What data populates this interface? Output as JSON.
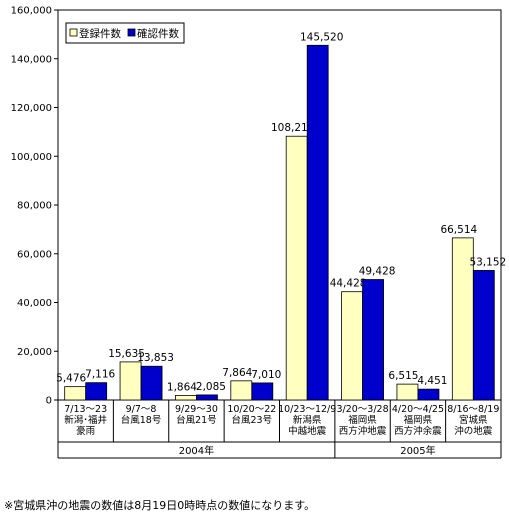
{
  "chart_data": {
    "type": "bar",
    "categories": [
      [
        "7/13～23",
        "新潟･福井",
        "豪雨"
      ],
      [
        "9/7～8",
        "台風18号"
      ],
      [
        "9/29～30",
        "台風21号"
      ],
      [
        "10/20～22",
        "台風23号"
      ],
      [
        "10/23～12/9",
        "新潟県",
        "中越地震"
      ],
      [
        "3/20～3/28",
        "福岡県",
        "西方沖地震"
      ],
      [
        "4/20～4/25",
        "福岡県",
        "西方沖余震"
      ],
      [
        "8/16～8/19",
        "宮城県",
        "沖の地震"
      ]
    ],
    "series": [
      {
        "name": "登録件数",
        "color": "#ffffc0",
        "values": [
          5476,
          15635,
          1864,
          7864,
          108216,
          44428,
          6515,
          66514
        ]
      },
      {
        "name": "確認件数",
        "color": "#0000cc",
        "values": [
          7116,
          13853,
          2085,
          7010,
          145520,
          49428,
          4451,
          53152
        ]
      }
    ],
    "value_labels": {
      "登録件数": [
        "5,476",
        "15,635",
        "1,864",
        "7,864",
        "108,216",
        "44,428",
        "6,515",
        "66,514"
      ],
      "確認件数": [
        "7,116",
        "13,853",
        "2,085",
        "7,010",
        "145,520",
        "49,428",
        "4,451",
        "53,152"
      ]
    },
    "ylim": [
      0,
      160000
    ],
    "yticks": [
      0,
      20000,
      40000,
      60000,
      80000,
      100000,
      120000,
      140000,
      160000
    ],
    "ytick_labels": [
      "0",
      "20,000",
      "40,000",
      "60,000",
      "80,000",
      "100,000",
      "120,000",
      "140,000",
      "160,000"
    ],
    "year_groups": [
      {
        "label": "2004年",
        "from": 0,
        "to": 4
      },
      {
        "label": "2005年",
        "from": 5,
        "to": 7
      }
    ],
    "legend": {
      "position": "top-left"
    },
    "grid": false,
    "title": "",
    "xlabel": "",
    "ylabel": ""
  },
  "footnote": "※宮城県沖の地震の数値は8月19日0時時点の数値になります。"
}
